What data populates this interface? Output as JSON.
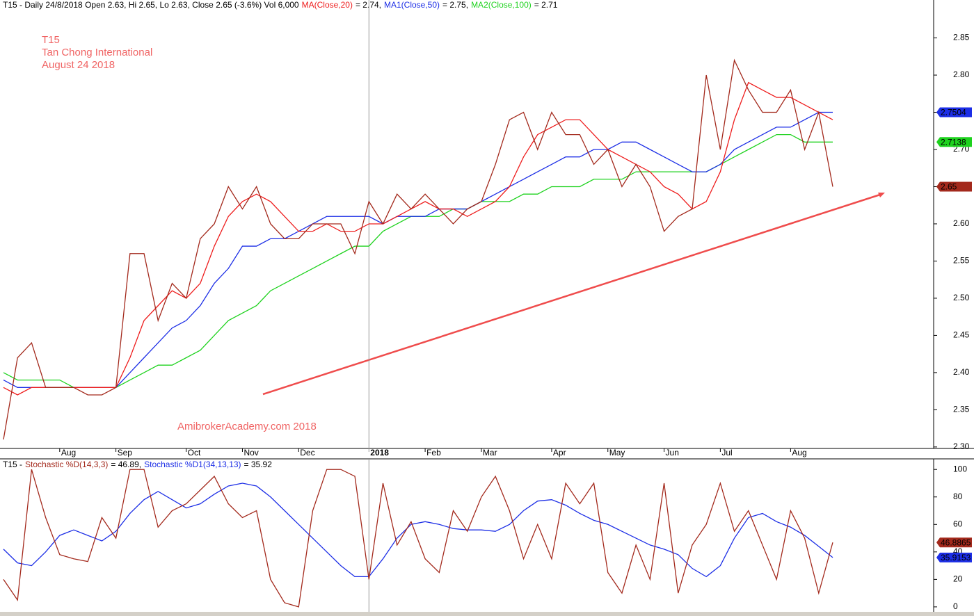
{
  "chart_data": [
    {
      "type": "line",
      "header": "T15 - Daily 24/8/2018 Open 2.63, Hi 2.65, Lo 2.63, Close 2.65 (-3.6%) Vol 6,000",
      "annotations": [
        "T15",
        "Tan Chong International",
        "August 24 2018",
        "AmibrokerAcademy.com  2018"
      ],
      "categories": [
        null,
        null,
        null,
        null,
        "Aug",
        null,
        null,
        null,
        "Sep",
        null,
        null,
        null,
        null,
        "Oct",
        null,
        null,
        null,
        "Nov",
        null,
        null,
        null,
        "Dec",
        null,
        null,
        null,
        null,
        "2018",
        null,
        null,
        null,
        "Feb",
        null,
        null,
        null,
        "Mar",
        null,
        null,
        null,
        null,
        "Apr",
        null,
        null,
        null,
        "May",
        null,
        null,
        null,
        "Jun",
        null,
        null,
        null,
        "Jul",
        null,
        null,
        null,
        null,
        "Aug",
        null,
        null,
        null
      ],
      "ylim": [
        2.298,
        2.901
      ],
      "yticks": [
        {
          "value": 2.3,
          "label": "2.30"
        },
        2.35,
        {
          "value": 2.4,
          "label": "2.40"
        },
        2.45,
        {
          "value": 2.5,
          "label": "2.50"
        },
        2.55,
        {
          "value": 2.6,
          "label": "2.60"
        },
        2.65,
        {
          "value": 2.7,
          "label": "2.70"
        },
        2.75,
        {
          "value": 2.8,
          "label": "2.80"
        },
        2.85
      ],
      "series": [
        {
          "color": "#a3291c",
          "end_label": "2.65",
          "values": [
            2.31,
            2.42,
            2.44,
            2.38,
            2.38,
            2.38,
            2.37,
            2.37,
            2.38,
            2.56,
            2.56,
            2.47,
            2.52,
            2.5,
            2.58,
            2.6,
            2.65,
            2.62,
            2.65,
            2.6,
            2.58,
            2.58,
            2.6,
            2.6,
            2.6,
            2.56,
            2.63,
            2.6,
            2.64,
            2.62,
            2.64,
            2.62,
            2.6,
            2.62,
            2.63,
            2.68,
            2.74,
            2.75,
            2.7,
            2.75,
            2.72,
            2.72,
            2.68,
            2.7,
            2.65,
            2.68,
            2.65,
            2.59,
            2.61,
            2.62,
            2.8,
            2.7,
            2.82,
            2.78,
            2.75,
            2.75,
            2.78,
            2.7,
            2.75,
            2.65
          ]
        },
        {
          "name": "MA(Close,20)",
          "legend_value": "= 2.74,",
          "color": "#ee1c1c",
          "values": [
            2.38,
            2.37,
            2.38,
            2.38,
            2.38,
            2.38,
            2.38,
            2.38,
            2.38,
            2.42,
            2.47,
            2.49,
            2.51,
            2.5,
            2.52,
            2.57,
            2.61,
            2.63,
            2.64,
            2.63,
            2.61,
            2.59,
            2.59,
            2.6,
            2.59,
            2.59,
            2.6,
            2.6,
            2.61,
            2.62,
            2.63,
            2.62,
            2.62,
            2.61,
            2.62,
            2.63,
            2.65,
            2.69,
            2.72,
            2.73,
            2.74,
            2.74,
            2.72,
            2.7,
            2.69,
            2.68,
            2.67,
            2.65,
            2.64,
            2.62,
            2.63,
            2.67,
            2.74,
            2.79,
            2.78,
            2.77,
            2.77,
            2.76,
            2.75,
            2.74
          ]
        },
        {
          "name": "MA1(Close,50)",
          "legend_value": "= 2.75,",
          "color": "#1c2ee6",
          "end_label": "2.7504",
          "values": [
            2.39,
            2.38,
            2.38,
            2.38,
            2.38,
            2.38,
            2.38,
            2.38,
            2.38,
            2.4,
            2.42,
            2.44,
            2.46,
            2.47,
            2.49,
            2.52,
            2.54,
            2.57,
            2.57,
            2.58,
            2.58,
            2.59,
            2.6,
            2.61,
            2.61,
            2.61,
            2.61,
            2.6,
            2.61,
            2.61,
            2.61,
            2.62,
            2.62,
            2.62,
            2.63,
            2.64,
            2.65,
            2.66,
            2.67,
            2.68,
            2.69,
            2.69,
            2.7,
            2.7,
            2.71,
            2.71,
            2.7,
            2.69,
            2.68,
            2.67,
            2.67,
            2.68,
            2.7,
            2.71,
            2.72,
            2.73,
            2.73,
            2.74,
            2.75,
            2.75
          ]
        },
        {
          "name": "MA2(Close,100)",
          "legend_value": "= 2.71",
          "color": "#1ed21e",
          "end_label": "2.7138",
          "values": [
            2.4,
            2.39,
            2.39,
            2.39,
            2.39,
            2.38,
            2.38,
            2.38,
            2.38,
            2.39,
            2.4,
            2.41,
            2.41,
            2.42,
            2.43,
            2.45,
            2.47,
            2.48,
            2.49,
            2.51,
            2.52,
            2.53,
            2.54,
            2.55,
            2.56,
            2.57,
            2.57,
            2.59,
            2.6,
            2.61,
            2.61,
            2.61,
            2.62,
            2.62,
            2.63,
            2.63,
            2.63,
            2.64,
            2.64,
            2.65,
            2.65,
            2.65,
            2.66,
            2.66,
            2.66,
            2.67,
            2.67,
            2.67,
            2.67,
            2.67,
            2.67,
            2.68,
            2.69,
            2.7,
            2.71,
            2.72,
            2.72,
            2.71,
            2.71,
            2.71
          ]
        }
      ]
    },
    {
      "type": "line",
      "header": "T15 -",
      "ylim": [
        -3.6,
        107.7
      ],
      "yticks": [
        0,
        20,
        40,
        60,
        80,
        100
      ],
      "series": [
        {
          "name": "Stochastic %D(14,3,3)",
          "legend_value": "= 46.89,",
          "color": "#a3291c",
          "end_label": "46.8865",
          "values": [
            20,
            5,
            100,
            65,
            38,
            35,
            33,
            65,
            50,
            100,
            100,
            58,
            70,
            75,
            85,
            95,
            75,
            65,
            70,
            20,
            3,
            0,
            70,
            100,
            100,
            95,
            20,
            90,
            45,
            62,
            35,
            25,
            70,
            55,
            80,
            95,
            70,
            35,
            60,
            35,
            90,
            75,
            90,
            25,
            10,
            45,
            20,
            90,
            10,
            45,
            60,
            90,
            55,
            70,
            45,
            20,
            70,
            50,
            10,
            46.89
          ]
        },
        {
          "name": "Stochastic %D1(34,13,13)",
          "legend_value": "= 35.92",
          "color": "#1c2ee6",
          "end_label": "35.9153",
          "values": [
            42,
            32,
            30,
            40,
            52,
            56,
            52,
            48,
            55,
            68,
            78,
            84,
            78,
            72,
            75,
            82,
            88,
            90,
            88,
            80,
            70,
            60,
            50,
            40,
            30,
            22,
            22,
            35,
            50,
            60,
            62,
            60,
            57,
            56,
            56,
            55,
            60,
            70,
            77,
            78,
            74,
            68,
            63,
            60,
            55,
            50,
            45,
            42,
            38,
            28,
            22,
            30,
            50,
            65,
            68,
            62,
            58,
            52,
            44,
            35.92
          ]
        }
      ]
    }
  ]
}
